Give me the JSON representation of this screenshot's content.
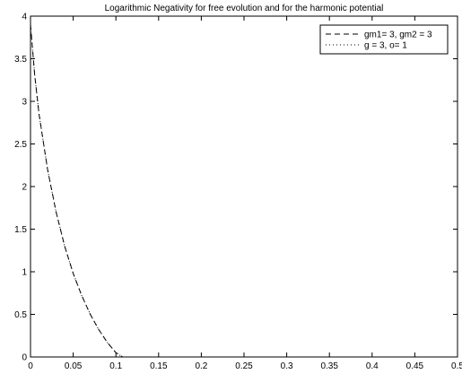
{
  "chart_data": {
    "type": "line",
    "title": "Logarithmic Negativity for free evolution and for the harmonic potential",
    "xlabel": "",
    "ylabel": "",
    "xlim": [
      0,
      0.5
    ],
    "ylim": [
      0,
      4
    ],
    "xticks": [
      0,
      0.05,
      0.1,
      0.15,
      0.2,
      0.25,
      0.3,
      0.35,
      0.4,
      0.45,
      0.5
    ],
    "yticks": [
      0,
      0.5,
      1,
      1.5,
      2,
      2.5,
      3,
      3.5,
      4
    ],
    "legend_placement": "top-right",
    "grid": false,
    "series": [
      {
        "name": "gm1= 3, gm2 = 3",
        "style": "dashed",
        "color": "#000000",
        "x": [
          0,
          0.005,
          0.01,
          0.02,
          0.03,
          0.04,
          0.05,
          0.06,
          0.07,
          0.08,
          0.09,
          0.1,
          0.108,
          0.5
        ],
        "y": [
          3.9,
          3.3,
          2.85,
          2.2,
          1.7,
          1.3,
          0.98,
          0.72,
          0.5,
          0.32,
          0.17,
          0.05,
          0,
          0
        ]
      },
      {
        "name": "g = 3, o= 1",
        "style": "dotted",
        "color": "#000000",
        "x": [
          0,
          0.005,
          0.01,
          0.02,
          0.03,
          0.04,
          0.05,
          0.06,
          0.07,
          0.08,
          0.09,
          0.1,
          0.108,
          0.5
        ],
        "y": [
          3.9,
          3.3,
          2.85,
          2.2,
          1.7,
          1.3,
          0.98,
          0.72,
          0.5,
          0.32,
          0.17,
          0.05,
          0,
          0
        ]
      }
    ]
  }
}
